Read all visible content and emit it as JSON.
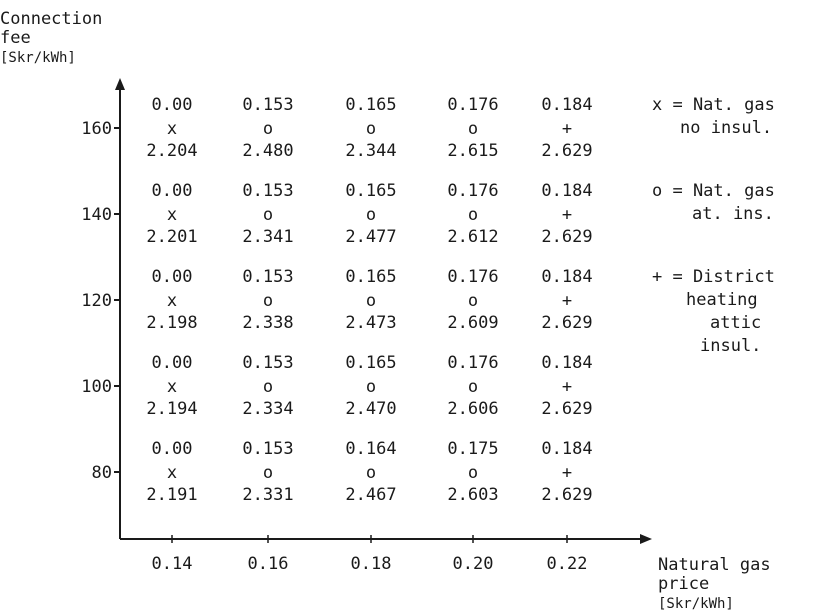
{
  "chart_data": {
    "type": "table",
    "ylabel_lines": [
      "Connection",
      "fee",
      "[Skr/kWh]"
    ],
    "xlabel_lines": [
      "Natural gas",
      "price",
      "[Skr/kWh]"
    ],
    "x": [
      0.14,
      0.16,
      0.18,
      0.2,
      0.22
    ],
    "x_tick_labels": [
      "0.14",
      "0.16",
      "0.18",
      "0.20",
      "0.22"
    ],
    "y": [
      160,
      140,
      120,
      100,
      80
    ],
    "y_tick_labels": [
      "160",
      "140",
      "120",
      "100",
      "80"
    ],
    "cells": [
      [
        {
          "top": "0.00",
          "marker": "x",
          "bottom": "2.204"
        },
        {
          "top": "0.153",
          "marker": "o",
          "bottom": "2.480"
        },
        {
          "top": "0.165",
          "marker": "o",
          "bottom": "2.344"
        },
        {
          "top": "0.176",
          "marker": "o",
          "bottom": "2.615"
        },
        {
          "top": "0.184",
          "marker": "+",
          "bottom": "2.629"
        }
      ],
      [
        {
          "top": "0.00",
          "marker": "x",
          "bottom": "2.201"
        },
        {
          "top": "0.153",
          "marker": "o",
          "bottom": "2.341"
        },
        {
          "top": "0.165",
          "marker": "o",
          "bottom": "2.477"
        },
        {
          "top": "0.176",
          "marker": "o",
          "bottom": "2.612"
        },
        {
          "top": "0.184",
          "marker": "+",
          "bottom": "2.629"
        }
      ],
      [
        {
          "top": "0.00",
          "marker": "x",
          "bottom": "2.198"
        },
        {
          "top": "0.153",
          "marker": "o",
          "bottom": "2.338"
        },
        {
          "top": "0.165",
          "marker": "o",
          "bottom": "2.473"
        },
        {
          "top": "0.176",
          "marker": "o",
          "bottom": "2.609"
        },
        {
          "top": "0.184",
          "marker": "+",
          "bottom": "2.629"
        }
      ],
      [
        {
          "top": "0.00",
          "marker": "x",
          "bottom": "2.194"
        },
        {
          "top": "0.153",
          "marker": "o",
          "bottom": "2.334"
        },
        {
          "top": "0.165",
          "marker": "o",
          "bottom": "2.470"
        },
        {
          "top": "0.176",
          "marker": "o",
          "bottom": "2.606"
        },
        {
          "top": "0.184",
          "marker": "+",
          "bottom": "2.629"
        }
      ],
      [
        {
          "top": "0.00",
          "marker": "x",
          "bottom": "2.191"
        },
        {
          "top": "0.153",
          "marker": "o",
          "bottom": "2.331"
        },
        {
          "top": "0.164",
          "marker": "o",
          "bottom": "2.467"
        },
        {
          "top": "0.175",
          "marker": "o",
          "bottom": "2.603"
        },
        {
          "top": "0.184",
          "marker": "+",
          "bottom": "2.629"
        }
      ]
    ],
    "legend": [
      {
        "symbol": "x",
        "lines": [
          "x = Nat. gas",
          "no insul."
        ]
      },
      {
        "symbol": "o",
        "lines": [
          "o = Nat. gas",
          "at. ins."
        ]
      },
      {
        "symbol": "+",
        "lines": [
          "+ = District",
          "heating",
          "attic",
          "insul."
        ]
      }
    ]
  }
}
